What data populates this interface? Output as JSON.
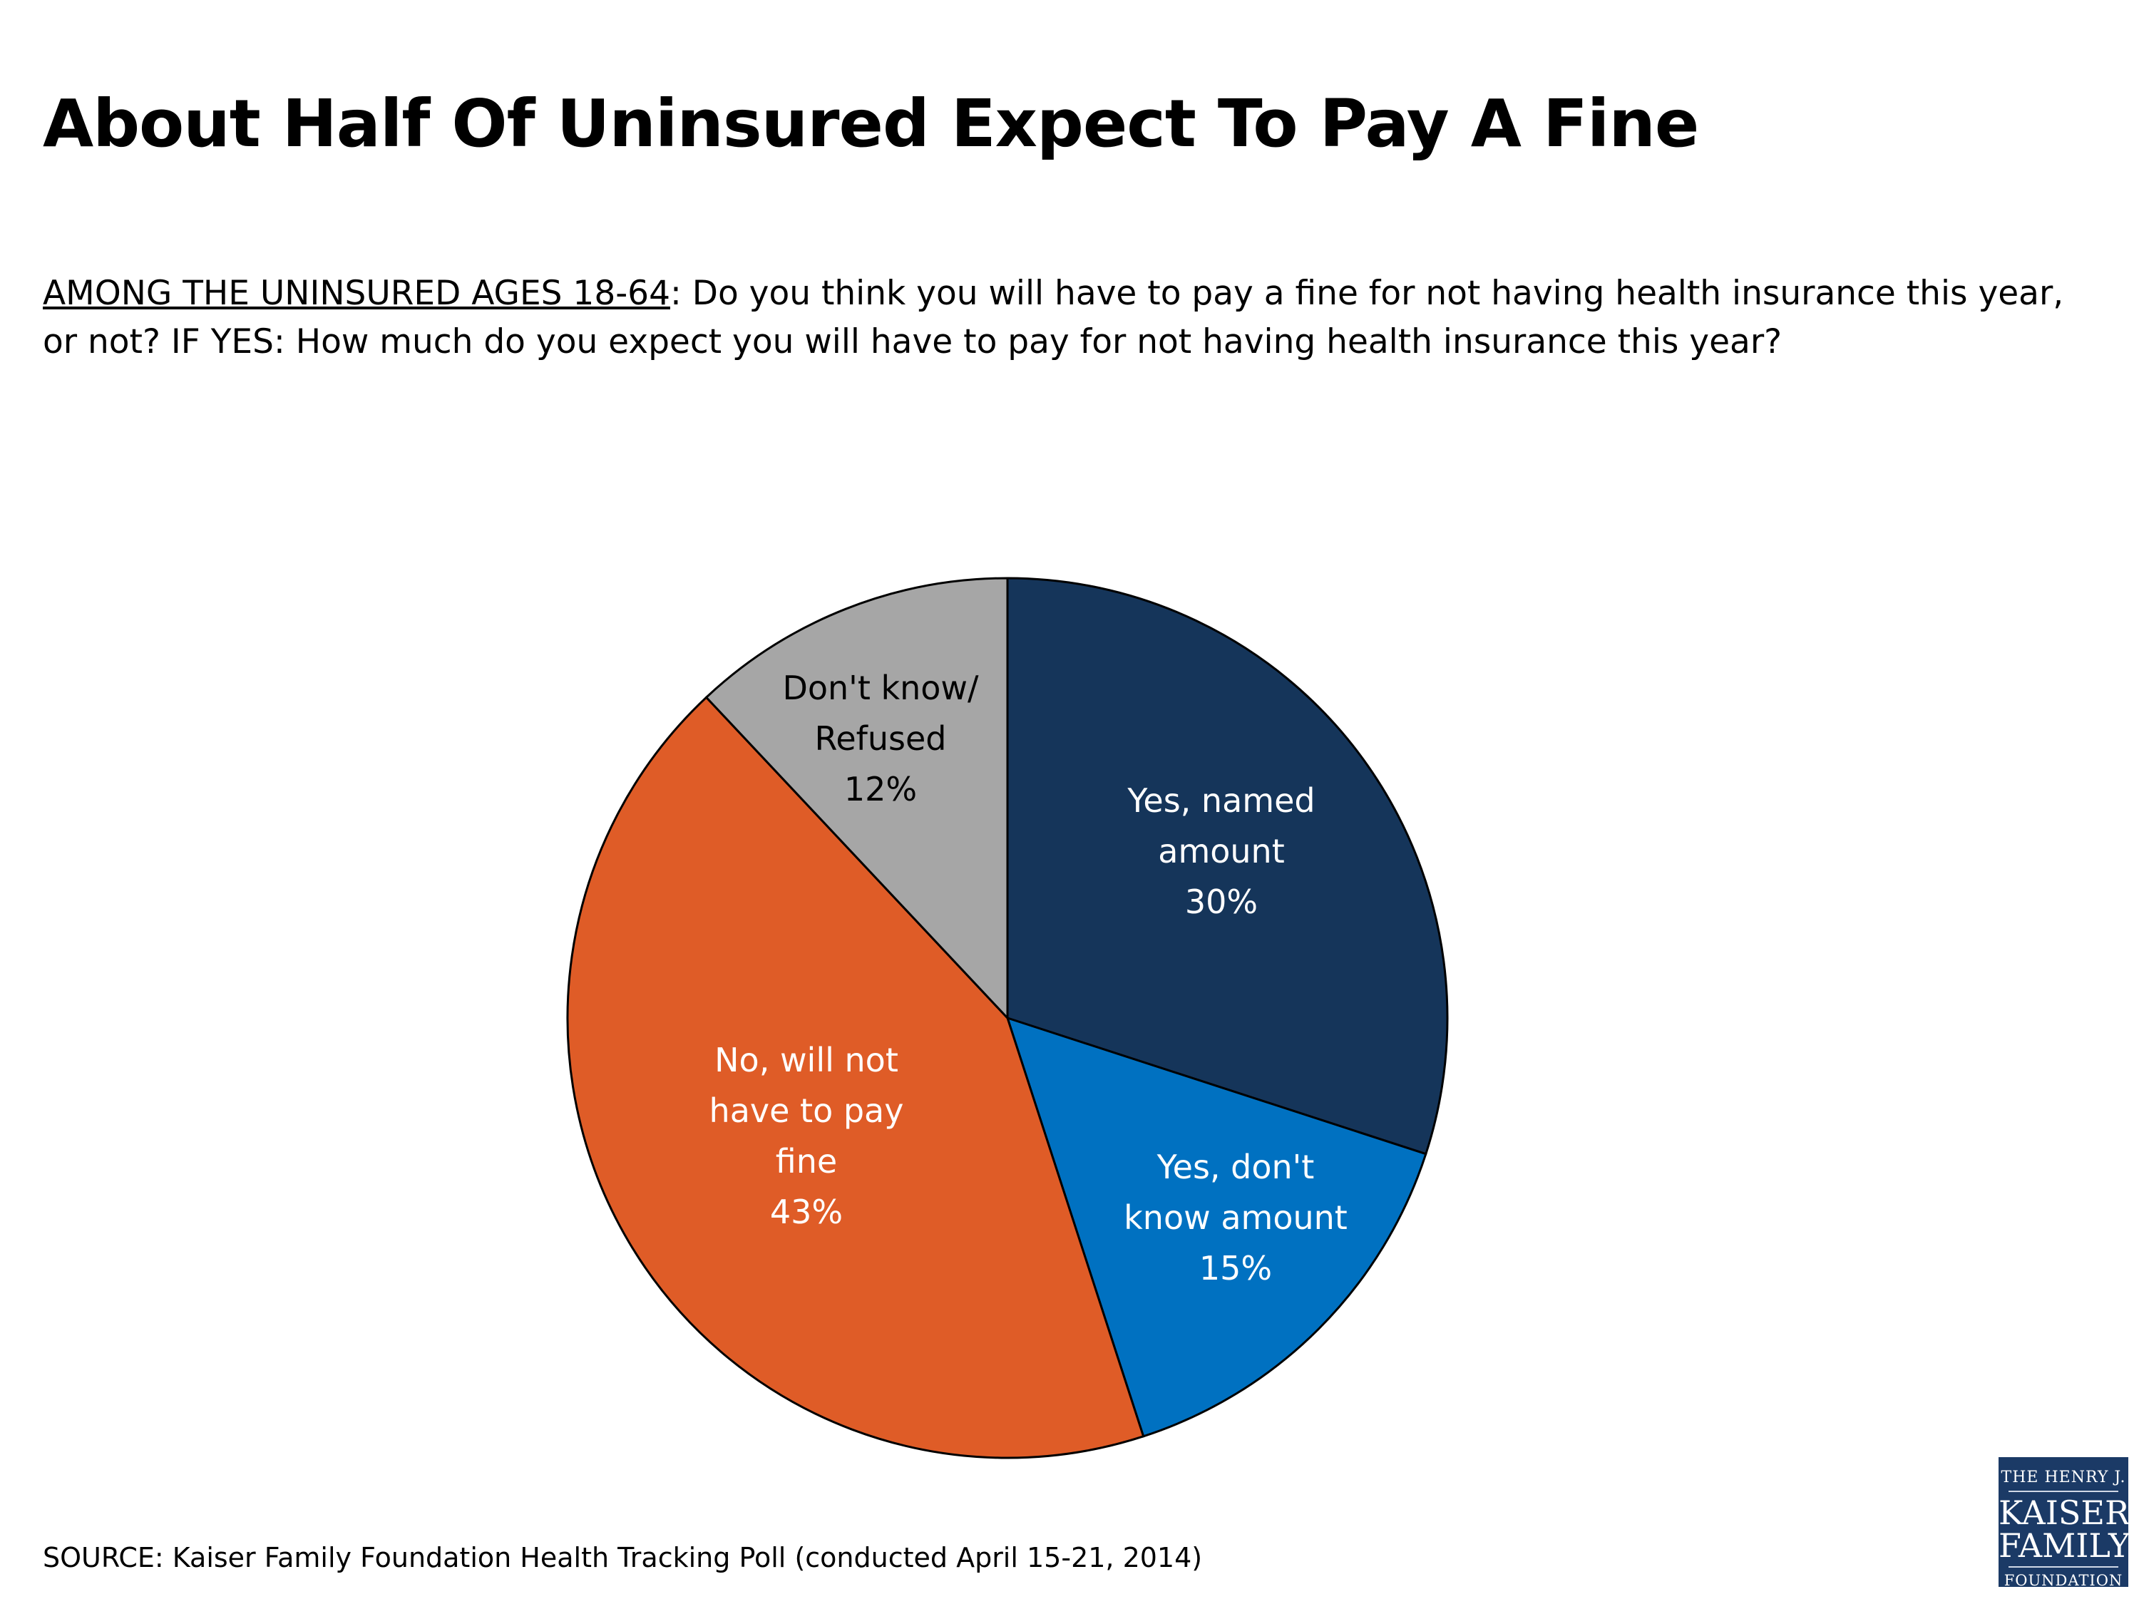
{
  "title": "About Half Of Uninsured Expect To Pay A Fine",
  "question": {
    "lead": "AMONG THE UNINSURED AGES 18-64",
    "text": ": Do you think you will have to pay a fine for not having health insurance this year, or not? IF YES: How much do you expect you will have to pay for not having health insurance this year?"
  },
  "source": "SOURCE: Kaiser Family Foundation Health Tracking Poll (conducted April 15-21, 2014)",
  "logo": {
    "line1": "THE HENRY J.",
    "line2": "KAISER",
    "line3": "FAMILY",
    "line4": "FOUNDATION"
  },
  "chart_data": {
    "type": "pie",
    "start": "12 o'clock, clockwise",
    "slices": [
      {
        "label": "Yes, named amount",
        "label_lines": [
          "Yes, named",
          "amount",
          "30%"
        ],
        "value": 30,
        "color": "#15355a",
        "text_color": "#ffffff"
      },
      {
        "label": "Yes, don't know amount",
        "label_lines": [
          "Yes, don't",
          "know amount",
          "15%"
        ],
        "value": 15,
        "color": "#0071c1",
        "text_color": "#ffffff"
      },
      {
        "label": "No, will not have to pay fine",
        "label_lines": [
          "No, will not",
          "have to pay",
          "fine",
          "43%"
        ],
        "value": 43,
        "color": "#df5c27",
        "text_color": "#ffffff"
      },
      {
        "label": "Don't know/ Refused",
        "label_lines": [
          "Don't know/",
          "Refused",
          "12%"
        ],
        "value": 12,
        "color": "#a6a6a6",
        "text_color": "#000000"
      }
    ]
  }
}
